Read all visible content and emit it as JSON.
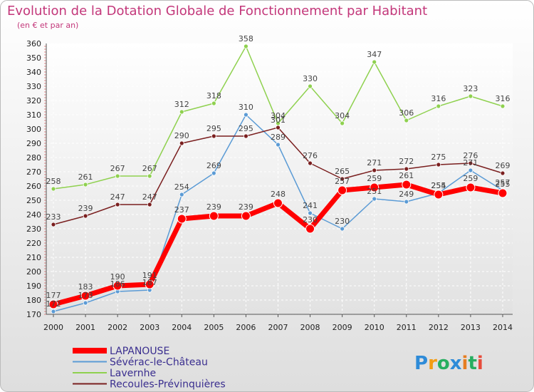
{
  "title": "Evolution de la Dotation Globale de Fonctionnement par Habitant",
  "subtitle": "(en € et par an)",
  "logo_text": "Proxiti",
  "colors": {
    "title": "#c3377a",
    "legend_text": "#3a2e8f",
    "axis_text": "#222222",
    "label_text": "#444444"
  },
  "chart_data": {
    "type": "line",
    "x": [
      2000,
      2001,
      2002,
      2003,
      2004,
      2005,
      2006,
      2007,
      2008,
      2009,
      2010,
      2011,
      2012,
      2013,
      2014
    ],
    "ylim": [
      170,
      360
    ],
    "yticks": [
      170,
      180,
      190,
      200,
      210,
      220,
      230,
      240,
      250,
      260,
      270,
      280,
      290,
      300,
      310,
      320,
      330,
      340,
      350,
      360
    ],
    "grid": true,
    "legend_position": "bottom-left",
    "series": [
      {
        "name": "Sévérac-le-Château",
        "color": "#5b9bd5",
        "values": [
          172,
          178,
          186,
          187,
          254,
          269,
          310,
          289,
          241,
          230,
          251,
          249,
          255,
          271,
          257
        ]
      },
      {
        "name": "Lavernhe",
        "color": "#8fd14f",
        "values": [
          258,
          261,
          267,
          267,
          312,
          318,
          358,
          304,
          330,
          304,
          347,
          306,
          316,
          323,
          316
        ]
      },
      {
        "name": "Recoules-Prévinquières",
        "color": "#7a1f1f",
        "values": [
          233,
          239,
          247,
          247,
          290,
          295,
          295,
          301,
          276,
          265,
          271,
          272,
          275,
          276,
          269
        ]
      },
      {
        "name": "LAPANOUSE",
        "color": "#ff0000",
        "values": [
          177,
          183,
          190,
          191,
          237,
          239,
          239,
          248,
          230,
          257,
          259,
          261,
          254,
          259,
          255
        ]
      }
    ]
  }
}
